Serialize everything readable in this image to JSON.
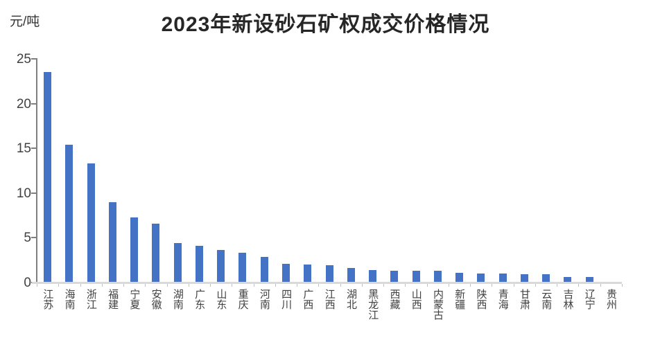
{
  "chart_data": {
    "type": "bar",
    "title": "2023年新设砂石矿权成交价格情况",
    "ylabel": "元/吨",
    "xlabel": "",
    "categories": [
      "江苏",
      "海南",
      "浙江",
      "福建",
      "宁夏",
      "安徽",
      "湖南",
      "广东",
      "山东",
      "重庆",
      "河南",
      "四川",
      "广西",
      "江西",
      "湖北",
      "黑龙江",
      "西藏",
      "山西",
      "内蒙古",
      "新疆",
      "陕西",
      "青海",
      "甘肃",
      "云南",
      "吉林",
      "辽宁",
      "贵州"
    ],
    "values": [
      23.5,
      15.4,
      13.3,
      9.0,
      7.3,
      6.6,
      4.4,
      4.1,
      3.6,
      3.3,
      2.9,
      2.1,
      2.0,
      1.9,
      1.6,
      1.4,
      1.3,
      1.3,
      1.3,
      1.1,
      1.0,
      1.0,
      0.9,
      0.9,
      0.6,
      0.6,
      0.1
    ],
    "ylim": [
      0,
      25
    ],
    "yticks": [
      0,
      5,
      10,
      15,
      20,
      25
    ],
    "grid": false,
    "legend_position": "none",
    "colors": {
      "bar": "#4472c4",
      "axis": "#7f7f7f",
      "baseline": "#d9d9d9",
      "tick_label": "#404040",
      "title": "#262626"
    }
  }
}
